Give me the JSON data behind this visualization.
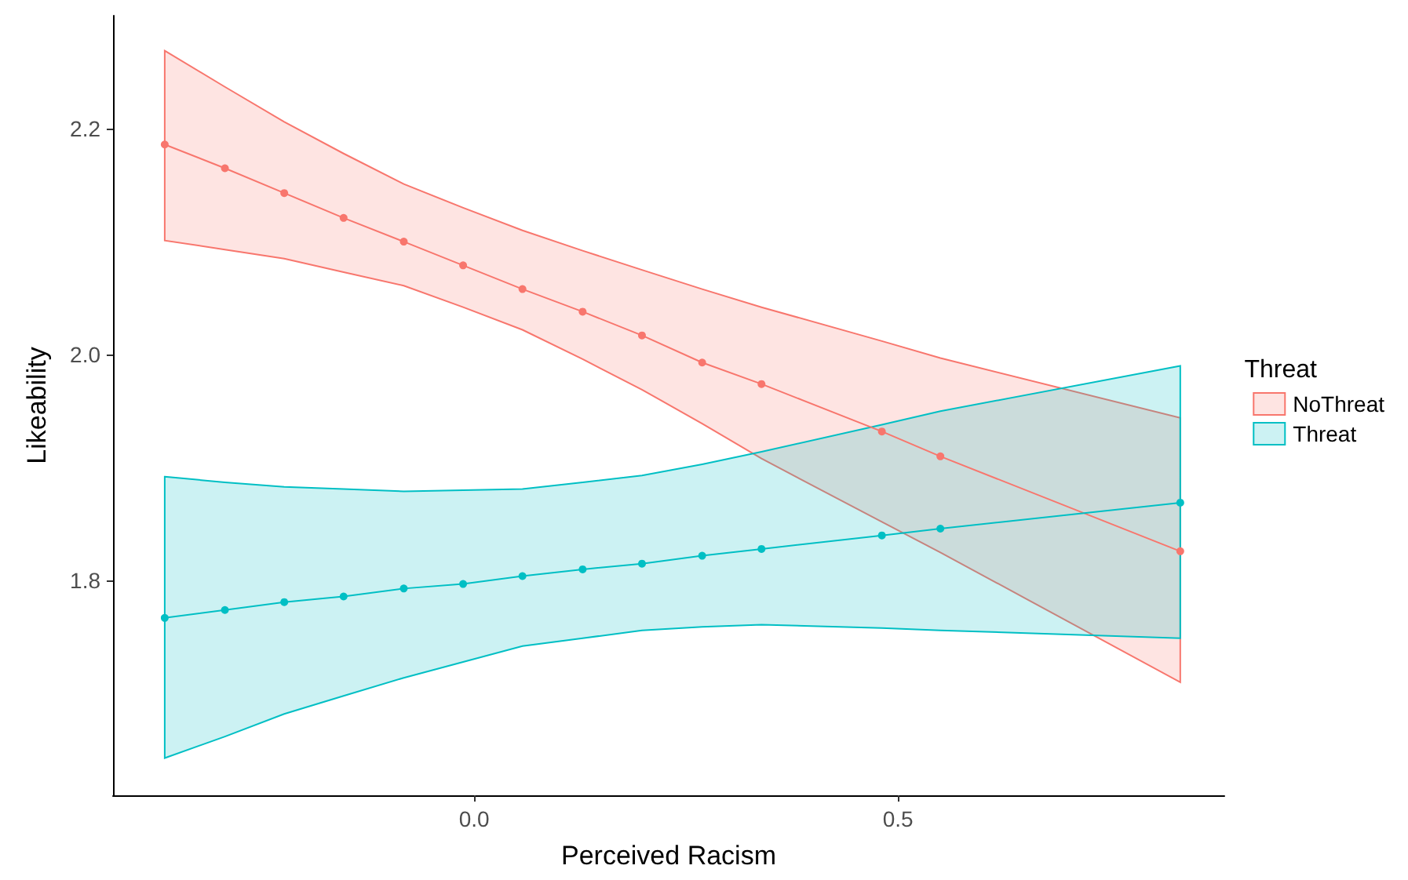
{
  "chart_data": {
    "type": "line",
    "xlabel": "Perceived Racism",
    "ylabel": "Likeability",
    "legend_title": "Threat",
    "x": [
      -0.365,
      -0.294,
      -0.224,
      -0.154,
      -0.083,
      -0.013,
      0.057,
      0.128,
      0.198,
      0.269,
      0.339,
      0.481,
      0.55,
      0.833
    ],
    "series": [
      {
        "name": "NoThreat",
        "color": "#f8766d",
        "values": [
          2.186,
          2.165,
          2.143,
          2.121,
          2.1,
          2.079,
          2.058,
          2.038,
          2.017,
          1.993,
          1.974,
          1.932,
          1.91,
          1.826
        ],
        "lower": [
          2.101,
          2.093,
          2.085,
          2.073,
          2.061,
          2.042,
          2.022,
          1.996,
          1.969,
          1.939,
          1.908,
          1.852,
          1.825,
          1.71
        ],
        "upper": [
          2.269,
          2.237,
          2.206,
          2.178,
          2.151,
          2.13,
          2.11,
          2.092,
          2.075,
          2.058,
          2.042,
          2.012,
          1.997,
          1.944
        ]
      },
      {
        "name": "Threat",
        "color": "#00bfc4",
        "values": [
          1.767,
          1.774,
          1.781,
          1.786,
          1.793,
          1.797,
          1.804,
          1.81,
          1.815,
          1.822,
          1.828,
          1.84,
          1.846,
          1.869
        ],
        "lower": [
          1.643,
          1.662,
          1.682,
          1.698,
          1.714,
          1.728,
          1.742,
          1.749,
          1.756,
          1.759,
          1.761,
          1.758,
          1.756,
          1.749
        ],
        "upper": [
          1.892,
          1.887,
          1.883,
          1.881,
          1.879,
          1.88,
          1.881,
          1.887,
          1.893,
          1.903,
          1.914,
          1.938,
          1.95,
          1.99
        ]
      }
    ],
    "xlim": [
      -0.426,
      0.885
    ],
    "ylim": [
      1.61,
      2.3
    ],
    "xticks": [
      {
        "value": 0,
        "label": "0.0"
      },
      {
        "value": 0.5,
        "label": "0.5"
      }
    ],
    "yticks": [
      {
        "value": 1.8,
        "label": "1.8"
      },
      {
        "value": 2.0,
        "label": "2.0"
      },
      {
        "value": 2.2,
        "label": "2.2"
      }
    ],
    "grid": false,
    "legend": "right",
    "marker": "circle",
    "line_style": "solid"
  }
}
